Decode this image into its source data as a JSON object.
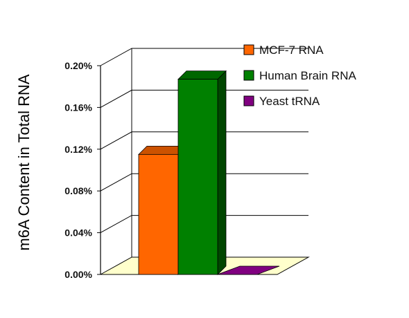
{
  "chart_data": {
    "type": "bar",
    "title": "",
    "xlabel": "",
    "ylabel": "m6A Content in Total RNA",
    "ylim": [
      0,
      0.2
    ],
    "ytick_labels": [
      "0.00%",
      "0.04%",
      "0.08%",
      "0.12%",
      "0.16%",
      "0.20%"
    ],
    "yticks": [
      0,
      0.04,
      0.08,
      0.12,
      0.16,
      0.2
    ],
    "grid": true,
    "legend_position": "top-right",
    "series": [
      {
        "name": "MCF-7 RNA",
        "values": [
          0.115
        ],
        "color": "#ff6600"
      },
      {
        "name": "Human Brain RNA",
        "values": [
          0.187
        ],
        "color": "#008000"
      },
      {
        "name": "Yeast tRNA",
        "values": [
          0.0
        ],
        "color": "#800080"
      }
    ]
  }
}
